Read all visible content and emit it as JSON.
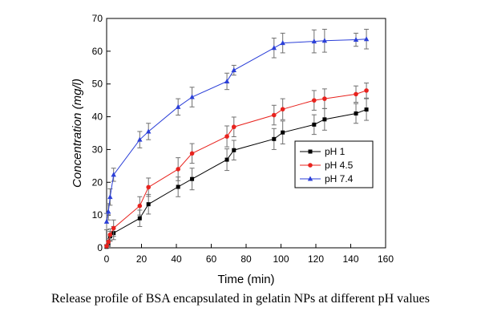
{
  "caption": "Release profile of BSA encapsulated in gelatin NPs at different pH values",
  "chart_data": {
    "type": "line",
    "title": "",
    "xlabel": "Time (min)",
    "ylabel": "Concentration (mg/l)",
    "xlim": [
      0,
      160
    ],
    "ylim": [
      0,
      70
    ],
    "xticks": [
      0,
      20,
      40,
      60,
      80,
      100,
      120,
      140,
      160
    ],
    "yticks": [
      0,
      10,
      20,
      30,
      40,
      50,
      60,
      70
    ],
    "grid": false,
    "legend_position": "right",
    "series": [
      {
        "name": "pH 1",
        "color": "#000000",
        "marker": "square",
        "x": [
          0,
          1,
          2,
          4,
          19,
          24,
          41,
          49,
          69,
          73,
          96,
          101,
          119,
          125,
          143,
          149
        ],
        "y": [
          0.3,
          1.2,
          3.5,
          4.5,
          9,
          13.3,
          18.6,
          21,
          26.9,
          29.8,
          33.2,
          35.2,
          37.6,
          39.2,
          41,
          42.2
        ],
        "err": [
          0.4,
          0.8,
          1.5,
          2.0,
          2.5,
          3.0,
          3.0,
          3.3,
          3.3,
          3.0,
          3.2,
          3.5,
          3.0,
          3.3,
          3.0,
          3.3
        ]
      },
      {
        "name": "pH 4.5",
        "color": "#e8231e",
        "marker": "circle",
        "x": [
          0,
          1,
          2,
          4,
          19,
          24,
          41,
          49,
          69,
          73,
          96,
          101,
          119,
          125,
          143,
          149
        ],
        "y": [
          0.5,
          1.8,
          4.0,
          6.0,
          12.8,
          18.5,
          24,
          28.8,
          34,
          36.9,
          40.5,
          42.3,
          45,
          45.5,
          46.9,
          48
        ],
        "err": [
          0.5,
          1.0,
          1.8,
          2.5,
          2.8,
          2.8,
          3.5,
          3.0,
          3.2,
          3.0,
          3.0,
          3.2,
          3.0,
          3.0,
          2.5,
          2.3
        ]
      },
      {
        "name": "pH 7.4",
        "color": "#2b3fd8",
        "marker": "triangle",
        "x": [
          0,
          1,
          2,
          4,
          19,
          24,
          41,
          49,
          69,
          73,
          96,
          101,
          119,
          125,
          143,
          149
        ],
        "y": [
          8,
          11,
          15.5,
          22.3,
          33,
          35.5,
          43,
          46,
          50.8,
          54.2,
          61,
          62.5,
          63,
          63.2,
          63.5,
          63.7
        ],
        "err": [
          2.5,
          2.5,
          2.5,
          2.0,
          2.5,
          2.5,
          2.5,
          3.0,
          2.5,
          1.5,
          3.0,
          3.0,
          3.5,
          3.5,
          2.0,
          3.0
        ]
      }
    ]
  }
}
